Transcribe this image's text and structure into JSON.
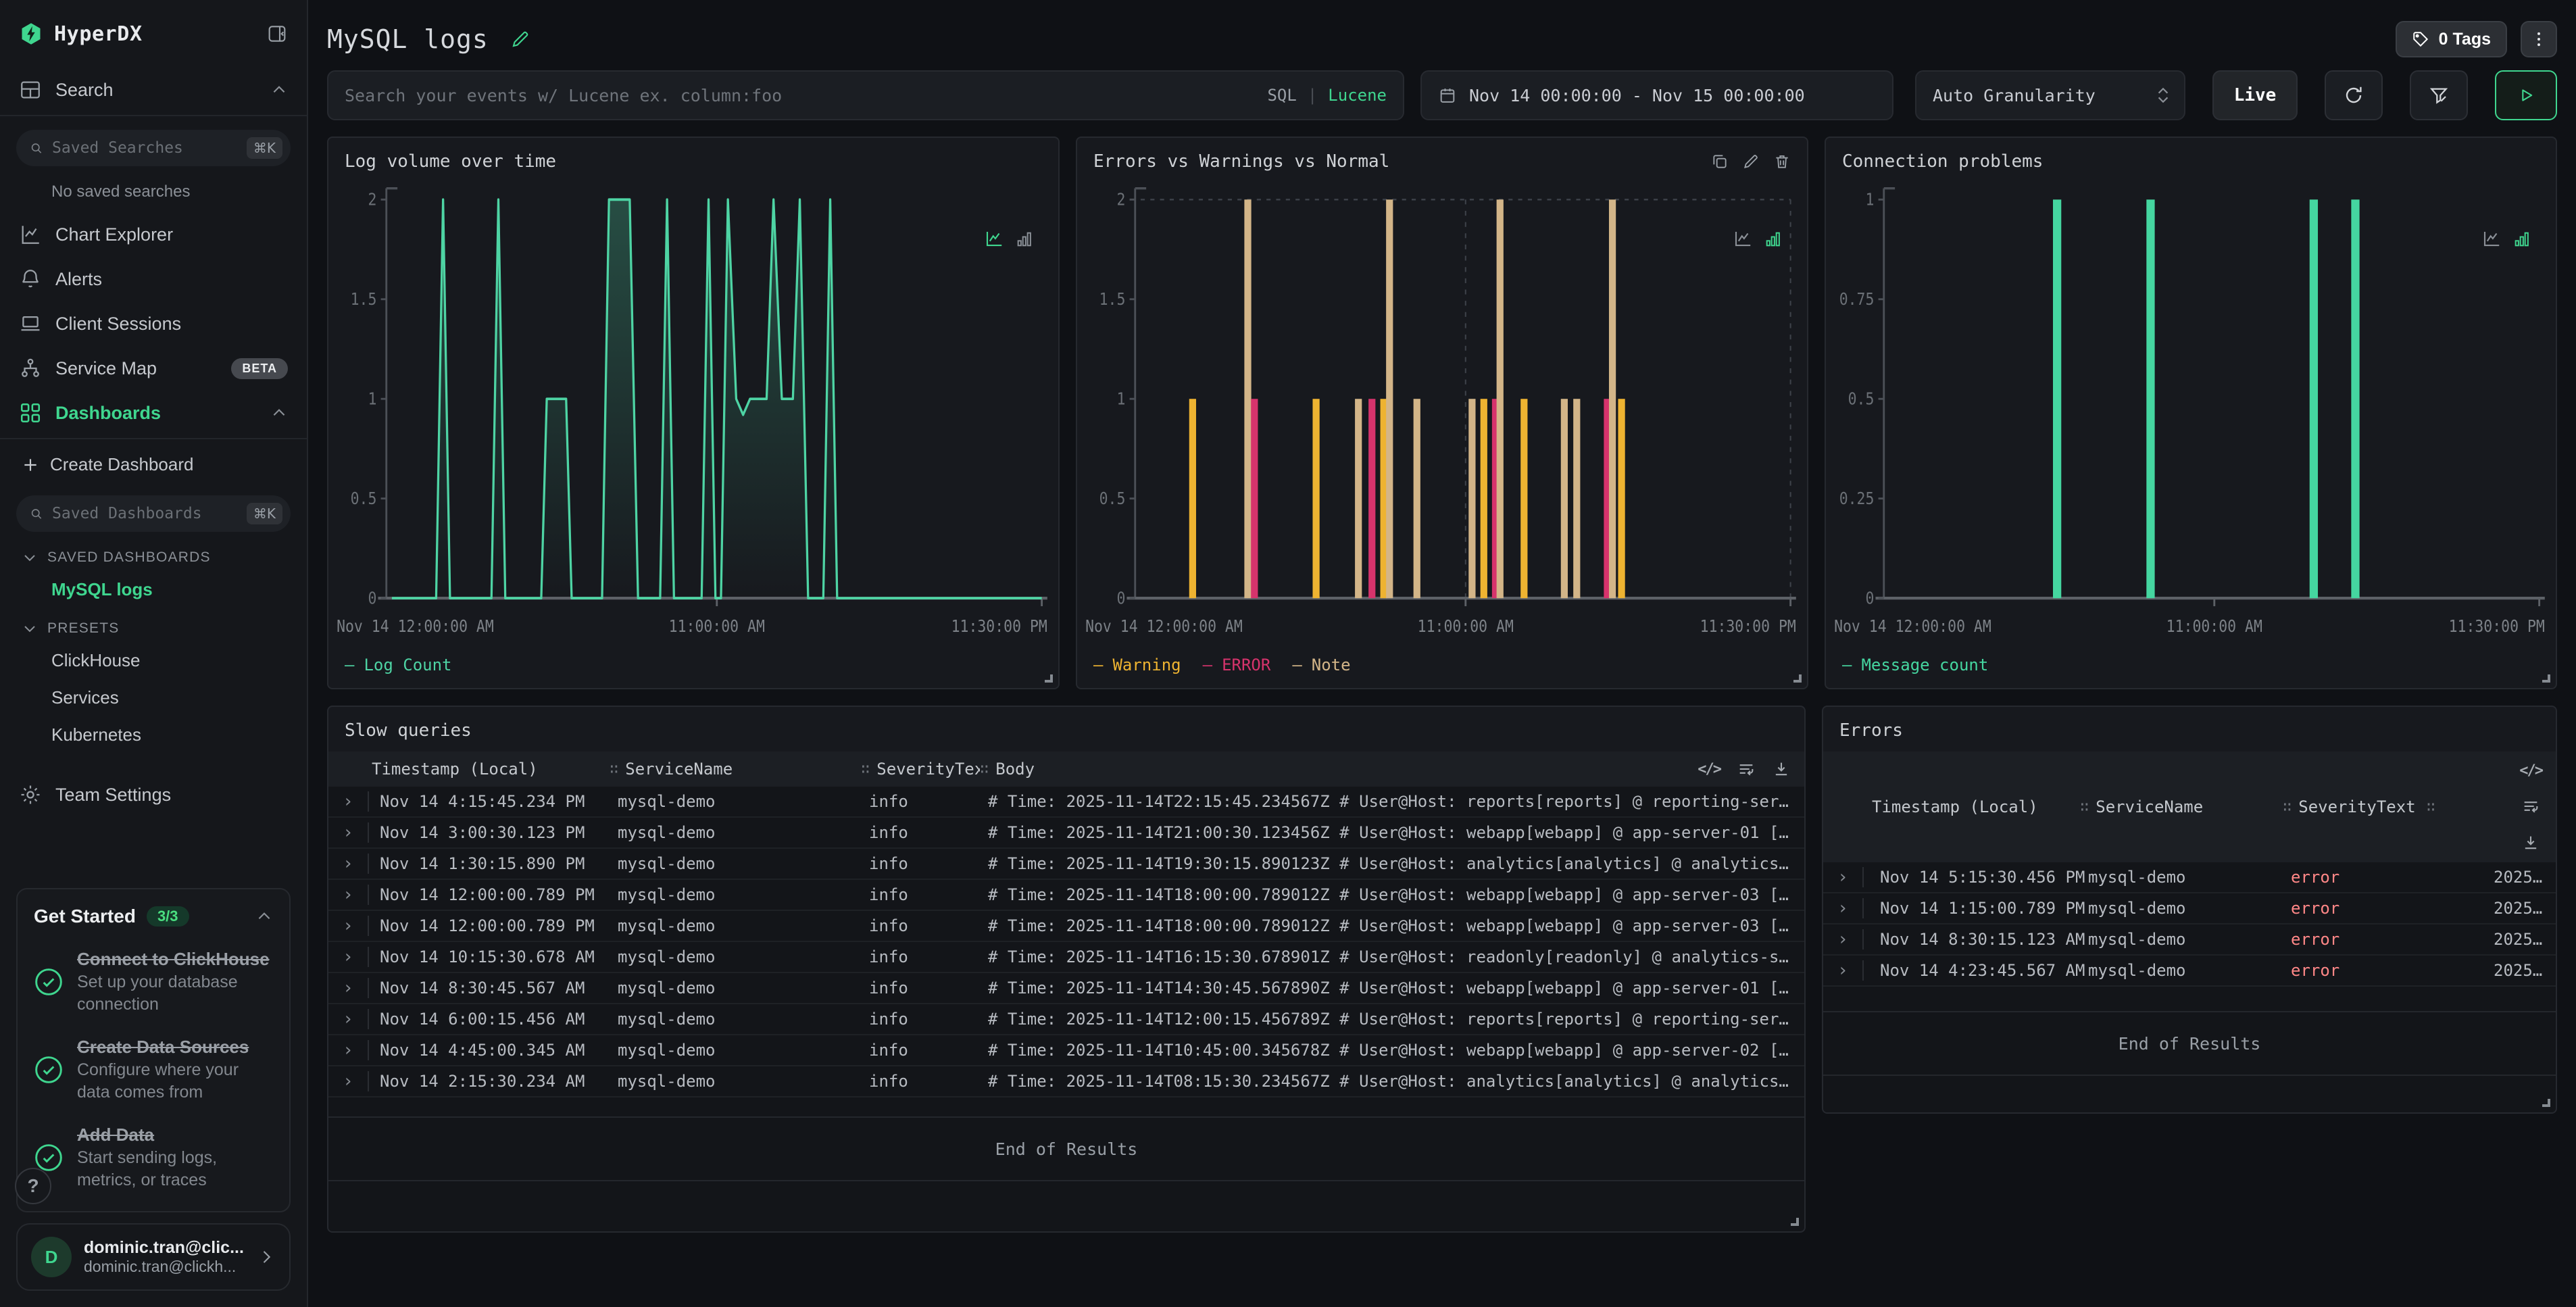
{
  "sidebar": {
    "logo": "HyperDX",
    "items": {
      "search": "Search",
      "chart_explorer": "Chart Explorer",
      "alerts": "Alerts",
      "client_sessions": "Client Sessions",
      "service_map": "Service Map",
      "dashboards": "Dashboards",
      "team_settings": "Team Settings"
    },
    "beta_badge": "BETA",
    "saved_searches": {
      "placeholder": "Saved Searches",
      "kbd": "⌘K"
    },
    "no_saved_searches": "No saved searches",
    "create_dashboard": "Create Dashboard",
    "saved_dashboards": {
      "placeholder": "Saved Dashboards",
      "kbd": "⌘K"
    },
    "sections": {
      "saved_dashboards": "SAVED DASHBOARDS",
      "presets": "PRESETS"
    },
    "saved_dashboard_items": [
      "MySQL logs"
    ],
    "preset_items": [
      "ClickHouse",
      "Services",
      "Kubernetes"
    ]
  },
  "get_started": {
    "title": "Get Started",
    "progress": "3/3",
    "steps": [
      {
        "title": "Connect to ClickHouse",
        "desc": "Set up your database connection"
      },
      {
        "title": "Create Data Sources",
        "desc": "Configure where your data comes from"
      },
      {
        "title": "Add Data",
        "desc": "Start sending logs, metrics, or traces"
      }
    ]
  },
  "help_button": "?",
  "user": {
    "avatar": "D",
    "name": "dominic.tran@clic...",
    "email": "dominic.tran@clickh..."
  },
  "header": {
    "title": "MySQL logs",
    "tags_button": "0 Tags"
  },
  "filter_bar": {
    "search_placeholder": "Search your events w/ Lucene ex. column:foo",
    "sql_label": "SQL",
    "lucene_label": "Lucene",
    "date_range": "Nov 14 00:00:00 - Nov 15 00:00:00",
    "granularity": "Auto Granularity",
    "live_button": "Live"
  },
  "chart_data": [
    {
      "type": "line",
      "title": "Log volume over time",
      "x_unit": "hours",
      "x_range": [
        0,
        23.5
      ],
      "points": [
        [
          0,
          0
        ],
        [
          1.6,
          0
        ],
        [
          1.85,
          2
        ],
        [
          2.1,
          0
        ],
        [
          3.6,
          0
        ],
        [
          3.85,
          2
        ],
        [
          4.1,
          0
        ],
        [
          5.4,
          0
        ],
        [
          5.6,
          1
        ],
        [
          6.3,
          1
        ],
        [
          6.5,
          0
        ],
        [
          7.6,
          0
        ],
        [
          7.85,
          2
        ],
        [
          8.6,
          2
        ],
        [
          8.9,
          0
        ],
        [
          9.7,
          0
        ],
        [
          9.95,
          2
        ],
        [
          10.2,
          0
        ],
        [
          11.2,
          0
        ],
        [
          11.45,
          2
        ],
        [
          11.7,
          0
        ],
        [
          11.9,
          0
        ],
        [
          12.15,
          2
        ],
        [
          12.45,
          1
        ],
        [
          12.7,
          0.92
        ],
        [
          12.95,
          1
        ],
        [
          13.55,
          1
        ],
        [
          13.8,
          2
        ],
        [
          14.1,
          1
        ],
        [
          14.5,
          1
        ],
        [
          14.75,
          2
        ],
        [
          15.05,
          0
        ],
        [
          15.6,
          0
        ],
        [
          15.85,
          2
        ],
        [
          16.1,
          0
        ],
        [
          23.5,
          0
        ]
      ],
      "ylim": [
        0,
        2
      ],
      "yticks": [
        2,
        1.5,
        1,
        0.5,
        0
      ],
      "xticks": [
        "Nov 14 12:00:00 AM",
        "11:00:00 AM",
        "11:30:00 PM"
      ],
      "line_color": "#4ed4a4",
      "legend": [
        {
          "label": "Log Count",
          "color": "#4ed4a4"
        }
      ]
    },
    {
      "type": "bar",
      "title": "Errors vs Warnings vs Normal",
      "series_colors": {
        "Warning": "#eeb331",
        "ERROR": "#d6336c",
        "Note": "#d3b588"
      },
      "bars": [
        {
          "x": 0.08,
          "series": "Warning",
          "value": 1
        },
        {
          "x": 0.165,
          "series": "Note",
          "value": 2
        },
        {
          "x": 0.175,
          "series": "ERROR",
          "value": 1
        },
        {
          "x": 0.27,
          "series": "Warning",
          "value": 1
        },
        {
          "x": 0.335,
          "series": "Note",
          "value": 1
        },
        {
          "x": 0.356,
          "series": "ERROR",
          "value": 1
        },
        {
          "x": 0.374,
          "series": "Warning",
          "value": 1
        },
        {
          "x": 0.383,
          "series": "Note",
          "value": 2
        },
        {
          "x": 0.425,
          "series": "Note",
          "value": 1
        },
        {
          "x": 0.51,
          "series": "Note",
          "value": 1
        },
        {
          "x": 0.528,
          "series": "Warning",
          "value": 1
        },
        {
          "x": 0.546,
          "series": "ERROR",
          "value": 1
        },
        {
          "x": 0.553,
          "series": "Note",
          "value": 2
        },
        {
          "x": 0.59,
          "series": "Warning",
          "value": 1
        },
        {
          "x": 0.652,
          "series": "Note",
          "value": 1
        },
        {
          "x": 0.671,
          "series": "Note",
          "value": 1
        },
        {
          "x": 0.718,
          "series": "ERROR",
          "value": 1
        },
        {
          "x": 0.726,
          "series": "Note",
          "value": 2
        },
        {
          "x": 0.74,
          "series": "Warning",
          "value": 1
        }
      ],
      "ylim": [
        0,
        2
      ],
      "yticks": [
        2,
        1.5,
        1,
        0.5,
        0
      ],
      "xticks": [
        "Nov 14 12:00:00 AM",
        "11:00:00 AM",
        "11:30:00 PM"
      ],
      "grid_dashed": true,
      "legend": [
        {
          "label": "Warning",
          "color": "#eeb331"
        },
        {
          "label": "ERROR",
          "color": "#d6336c"
        },
        {
          "label": "Note",
          "color": "#d3b588"
        }
      ]
    },
    {
      "type": "bar",
      "title": "Connection problems",
      "series_colors": {
        "Message count": "#45d6a0"
      },
      "bars": [
        {
          "x": 0.258,
          "series": "Message count",
          "value": 1
        },
        {
          "x": 0.402,
          "series": "Message count",
          "value": 1
        },
        {
          "x": 0.653,
          "series": "Message count",
          "value": 1
        },
        {
          "x": 0.717,
          "series": "Message count",
          "value": 1
        }
      ],
      "ylim": [
        0,
        1
      ],
      "yticks": [
        1,
        0.75,
        0.5,
        0.25,
        0
      ],
      "xticks": [
        "Nov 14 12:00:00 AM",
        "11:00:00 AM",
        "11:30:00 PM"
      ],
      "legend": [
        {
          "label": "Message count",
          "color": "#45d6a0"
        }
      ]
    }
  ],
  "slow_queries": {
    "title": "Slow queries",
    "columns": [
      "Timestamp (Local)",
      "ServiceName",
      "SeverityText",
      "Body"
    ],
    "rows": [
      [
        "Nov 14 4:15:45.234 PM",
        "mysql-demo",
        "info",
        "# Time: 2025-11-14T22:15:45.234567Z # User@Host: reports[reports] @ reporting-ser…"
      ],
      [
        "Nov 14 3:00:30.123 PM",
        "mysql-demo",
        "info",
        "# Time: 2025-11-14T21:00:30.123456Z # User@Host: webapp[webapp] @ app-server-01 […"
      ],
      [
        "Nov 14 1:30:15.890 PM",
        "mysql-demo",
        "info",
        "# Time: 2025-11-14T19:30:15.890123Z # User@Host: analytics[analytics] @ analytics…"
      ],
      [
        "Nov 14 12:00:00.789 PM",
        "mysql-demo",
        "info",
        "# Time: 2025-11-14T18:00:00.789012Z # User@Host: webapp[webapp] @ app-server-03 […"
      ],
      [
        "Nov 14 12:00:00.789 PM",
        "mysql-demo",
        "info",
        "# Time: 2025-11-14T18:00:00.789012Z # User@Host: webapp[webapp] @ app-server-03 […"
      ],
      [
        "Nov 14 10:15:30.678 AM",
        "mysql-demo",
        "info",
        "# Time: 2025-11-14T16:15:30.678901Z # User@Host: readonly[readonly] @ analytics-s…"
      ],
      [
        "Nov 14 8:30:45.567 AM",
        "mysql-demo",
        "info",
        "# Time: 2025-11-14T14:30:45.567890Z # User@Host: webapp[webapp] @ app-server-01 […"
      ],
      [
        "Nov 14 6:00:15.456 AM",
        "mysql-demo",
        "info",
        "# Time: 2025-11-14T12:00:15.456789Z # User@Host: reports[reports] @ reporting-ser…"
      ],
      [
        "Nov 14 4:45:00.345 AM",
        "mysql-demo",
        "info",
        "# Time: 2025-11-14T10:45:00.345678Z # User@Host: webapp[webapp] @ app-server-02 […"
      ],
      [
        "Nov 14 2:15:30.234 AM",
        "mysql-demo",
        "info",
        "# Time: 2025-11-14T08:15:30.234567Z # User@Host: analytics[analytics] @ analytics…"
      ]
    ],
    "end_of_results": "End of Results"
  },
  "errors_panel": {
    "title": "Errors",
    "columns": [
      "Timestamp (Local)",
      "ServiceName",
      "SeverityText"
    ],
    "rows": [
      [
        "Nov 14 5:15:30.456 PM",
        "mysql-demo",
        "error",
        "2025…"
      ],
      [
        "Nov 14 1:15:00.789 PM",
        "mysql-demo",
        "error",
        "2025…"
      ],
      [
        "Nov 14 8:30:15.123 AM",
        "mysql-demo",
        "error",
        "2025…"
      ],
      [
        "Nov 14 4:23:45.567 AM",
        "mysql-demo",
        "error",
        "2025…"
      ]
    ],
    "end_of_results": "End of Results"
  },
  "colors": {
    "accent_green": "#3fd68f",
    "chart_green": "#4ed4a4",
    "warning": "#eeb331",
    "error_series": "#d6336c",
    "note": "#d3b588",
    "error_text": "#ff8787"
  }
}
